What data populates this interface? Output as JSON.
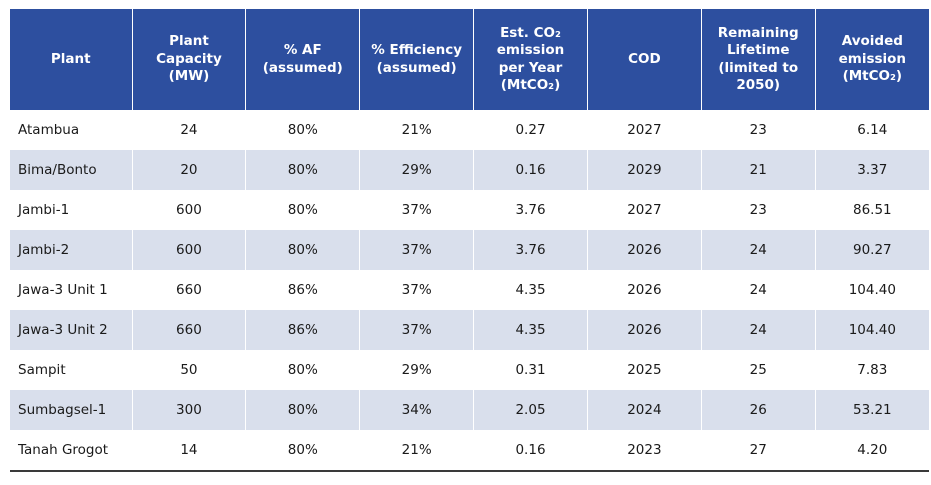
{
  "table": {
    "headers": [
      [
        "Plant"
      ],
      [
        "Plant",
        "Capacity",
        "(MW)"
      ],
      [
        "% AF",
        "(assumed)"
      ],
      [
        "% Efficiency",
        "(assumed)"
      ],
      [
        "Est. CO₂",
        "emission",
        "per Year",
        "(MtCO₂)"
      ],
      [
        "COD"
      ],
      [
        "Remaining",
        "Lifetime",
        "(limited to",
        "2050)"
      ],
      [
        "Avoided",
        "emission",
        "(MtCO₂)"
      ]
    ],
    "rows": [
      [
        "Atambua",
        "24",
        "80%",
        "21%",
        "0.27",
        "2027",
        "23",
        "6.14"
      ],
      [
        "Bima/Bonto",
        "20",
        "80%",
        "29%",
        "0.16",
        "2029",
        "21",
        "3.37"
      ],
      [
        "Jambi-1",
        "600",
        "80%",
        "37%",
        "3.76",
        "2027",
        "23",
        "86.51"
      ],
      [
        "Jambi-2",
        "600",
        "80%",
        "37%",
        "3.76",
        "2026",
        "24",
        "90.27"
      ],
      [
        "Jawa-3 Unit 1",
        "660",
        "86%",
        "37%",
        "4.35",
        "2026",
        "24",
        "104.40"
      ],
      [
        "Jawa-3 Unit 2",
        "660",
        "86%",
        "37%",
        "4.35",
        "2026",
        "24",
        "104.40"
      ],
      [
        "Sampit",
        "50",
        "80%",
        "29%",
        "0.31",
        "2025",
        "25",
        "7.83"
      ],
      [
        "Sumbagsel-1",
        "300",
        "80%",
        "34%",
        "2.05",
        "2024",
        "26",
        "53.21"
      ],
      [
        "Tanah Grogot",
        "14",
        "80%",
        "21%",
        "0.16",
        "2023",
        "27",
        "4.20"
      ]
    ]
  },
  "colors": {
    "header_bg": "#2d4f9f",
    "header_text": "#ffffff",
    "stripe": "#d9dfec"
  }
}
